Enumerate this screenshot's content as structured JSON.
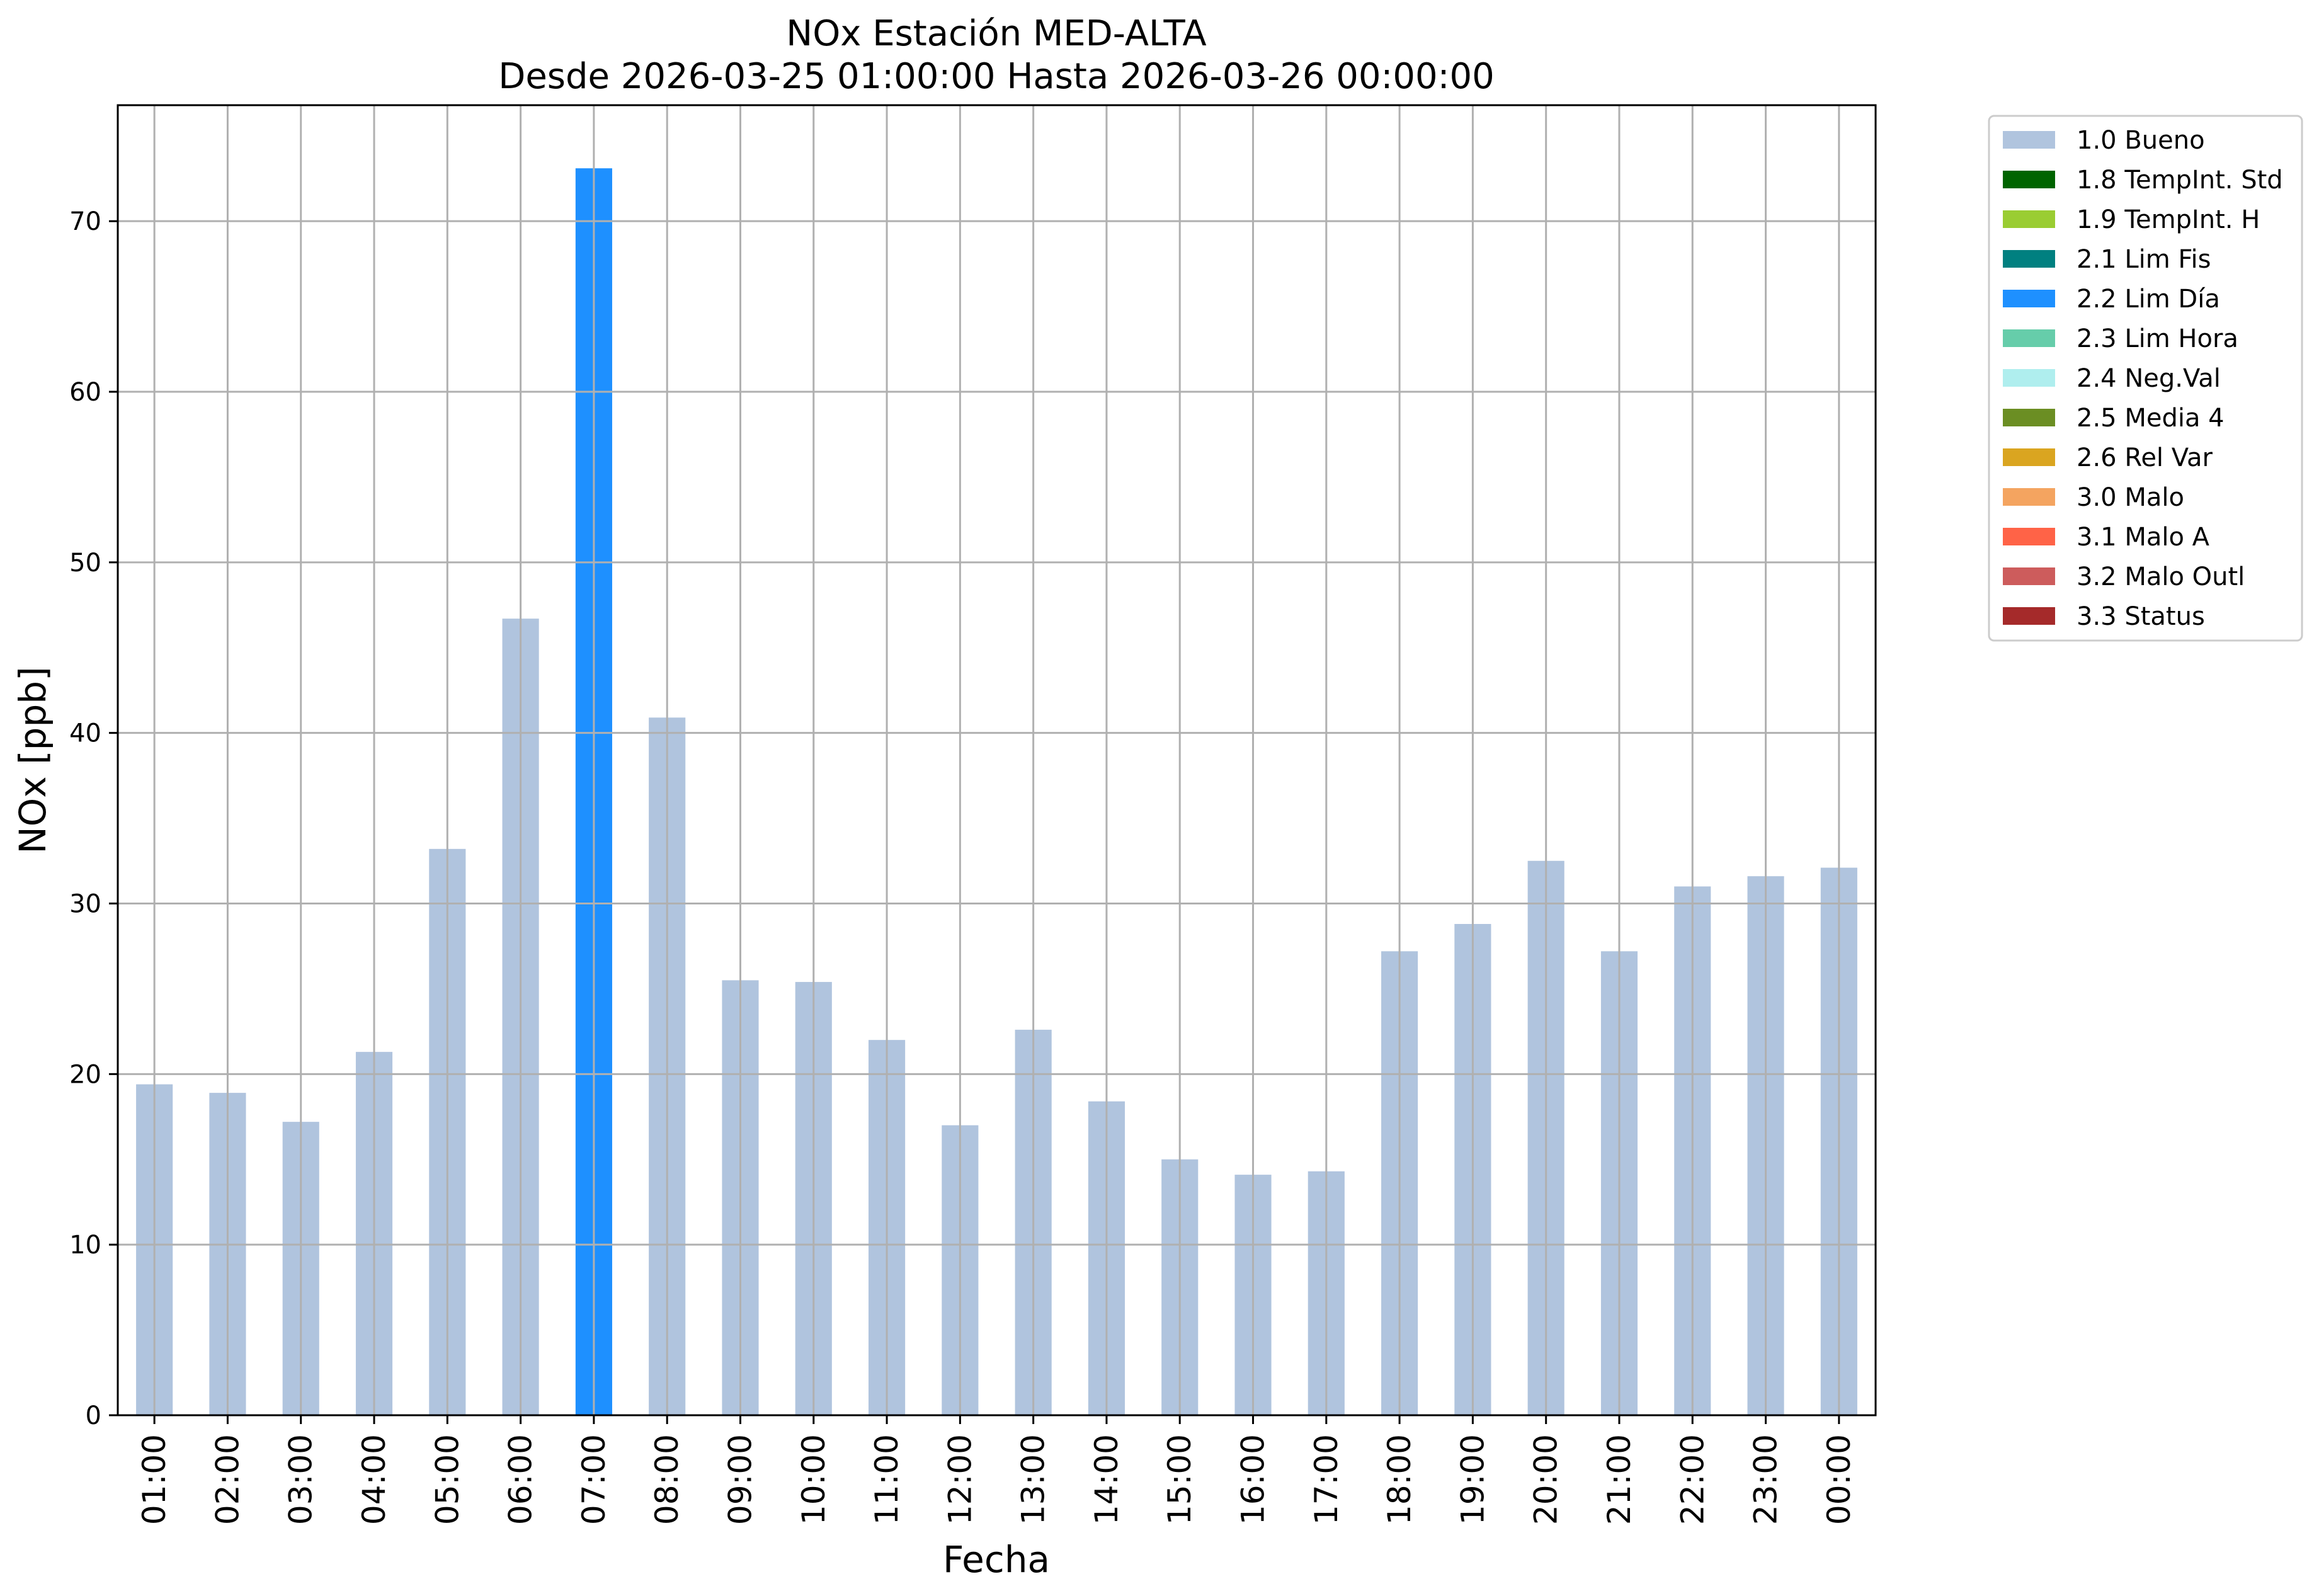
{
  "chart_data": {
    "type": "bar",
    "title": "NOx Estación MED-ALTA",
    "subtitle": "Desde 2026-03-25 01:00:00 Hasta 2026-03-26 00:00:00",
    "xlabel": "Fecha",
    "ylabel": "NOx [ppb]",
    "ylim": [
      0,
      76.8
    ],
    "yticks": [
      0,
      10,
      20,
      30,
      40,
      50,
      60,
      70
    ],
    "grid": true,
    "legend_position": "outside-top-right",
    "categories": [
      "01:00",
      "02:00",
      "03:00",
      "04:00",
      "05:00",
      "06:00",
      "07:00",
      "08:00",
      "09:00",
      "10:00",
      "11:00",
      "12:00",
      "13:00",
      "14:00",
      "15:00",
      "16:00",
      "17:00",
      "18:00",
      "19:00",
      "20:00",
      "21:00",
      "22:00",
      "23:00",
      "00:00"
    ],
    "values": [
      19.4,
      18.9,
      17.2,
      21.3,
      33.2,
      46.7,
      73.1,
      40.9,
      25.5,
      25.4,
      22.0,
      17.0,
      22.6,
      18.4,
      15.0,
      14.1,
      14.3,
      27.2,
      28.8,
      32.5,
      27.2,
      31.0,
      31.6,
      32.1
    ],
    "flags": [
      "1.0 Bueno",
      "1.0 Bueno",
      "1.0 Bueno",
      "1.0 Bueno",
      "1.0 Bueno",
      "1.0 Bueno",
      "2.2 Lim Día",
      "1.0 Bueno",
      "1.0 Bueno",
      "1.0 Bueno",
      "1.0 Bueno",
      "1.0 Bueno",
      "1.0 Bueno",
      "1.0 Bueno",
      "1.0 Bueno",
      "1.0 Bueno",
      "1.0 Bueno",
      "1.0 Bueno",
      "1.0 Bueno",
      "1.0 Bueno",
      "1.0 Bueno",
      "1.0 Bueno",
      "1.0 Bueno",
      "1.0 Bueno"
    ],
    "legend": [
      {
        "label": "1.0 Bueno",
        "color": "#b0c4de"
      },
      {
        "label": "1.8 TempInt. Std",
        "color": "#006400"
      },
      {
        "label": "1.9 TempInt. H",
        "color": "#9acd32"
      },
      {
        "label": "2.1 Lim Fis",
        "color": "#008080"
      },
      {
        "label": "2.2 Lim Día",
        "color": "#1e90ff"
      },
      {
        "label": "2.3 Lim Hora",
        "color": "#66cdaa"
      },
      {
        "label": "2.4 Neg.Val",
        "color": "#afeeee"
      },
      {
        "label": "2.5 Media 4",
        "color": "#6b8e23"
      },
      {
        "label": "2.6 Rel Var",
        "color": "#daa520"
      },
      {
        "label": "3.0 Malo",
        "color": "#f4a460"
      },
      {
        "label": "3.1 Malo A",
        "color": "#ff6347"
      },
      {
        "label": "3.2 Malo Outl",
        "color": "#cd5c5c"
      },
      {
        "label": "3.3 Status",
        "color": "#a52a2a"
      }
    ]
  }
}
